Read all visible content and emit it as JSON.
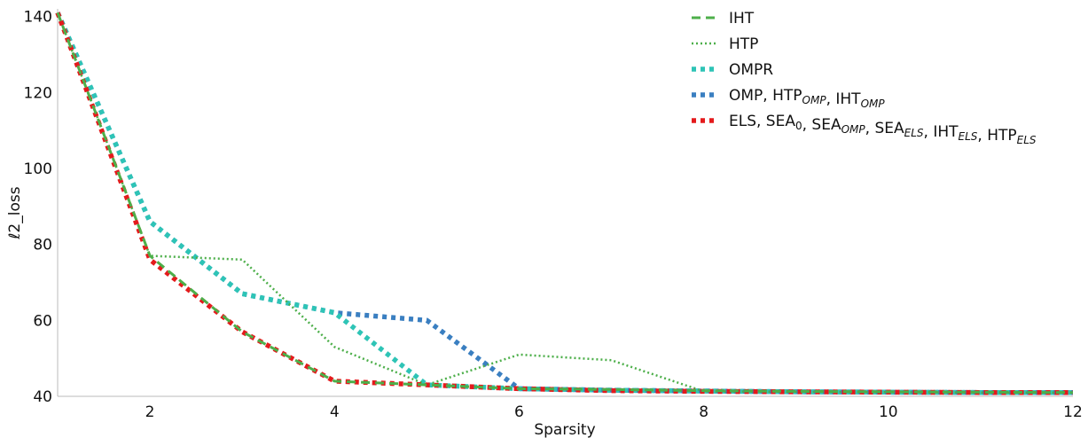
{
  "chart_data": {
    "type": "line",
    "title": "",
    "xlabel": "Sparsity",
    "ylabel": "ℓ2_loss",
    "xlim": [
      1,
      12
    ],
    "ylim": [
      40,
      142
    ],
    "xticks": [
      2,
      4,
      6,
      8,
      10,
      12
    ],
    "yticks": [
      40,
      60,
      80,
      100,
      120,
      140
    ],
    "x": [
      1,
      2,
      3,
      4,
      5,
      6,
      7,
      8,
      9,
      10,
      11,
      12
    ],
    "grid": false,
    "legend_position": "top-right",
    "series": [
      {
        "name": "IHT",
        "color": "#4daf4a",
        "style": "dashed",
        "values": [
          141,
          77,
          57,
          44,
          43,
          42,
          41.8,
          41.5,
          41.3,
          41.2,
          41.1,
          41.0
        ]
      },
      {
        "name": "HTP",
        "color": "#4daf4a",
        "style": "dotted",
        "values": [
          141,
          77,
          76,
          53,
          43,
          51,
          49.5,
          41.3,
          41.2,
          41.1,
          41.0,
          41.0
        ]
      },
      {
        "name": "OMPR",
        "color": "#2ec4b6",
        "style": "dotted-thick",
        "values": [
          141,
          86,
          67,
          62,
          43,
          42,
          41.6,
          41.4,
          41.2,
          41.1,
          41.0,
          41.0
        ]
      },
      {
        "name": "OMP, HTP_OMP, IHT_OMP",
        "color": "#3a7fc1",
        "style": "dotted-thick",
        "values": [
          141,
          86,
          67,
          62,
          60,
          42,
          41.6,
          41.4,
          41.2,
          41.1,
          41.0,
          41.0
        ]
      },
      {
        "name": "ELS, SEA_0, SEA_OMP, SEA_ELS, IHT_ELS, HTP_ELS",
        "color": "#e41a1c",
        "style": "dotted-thick",
        "values": [
          141,
          76,
          57,
          44,
          43,
          42,
          41.5,
          41.3,
          41.2,
          41.1,
          41.0,
          41.0
        ]
      }
    ]
  }
}
